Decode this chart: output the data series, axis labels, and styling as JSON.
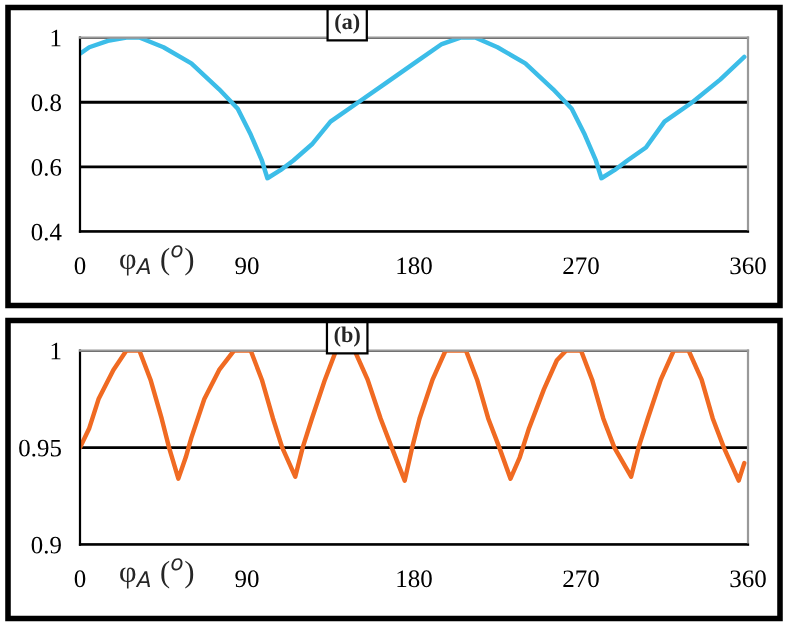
{
  "chart_data": [
    {
      "type": "line",
      "xlabel": "φ$_{A}$ ($^{o}$)",
      "annotations": [
        "(a)"
      ],
      "grid": "y",
      "xlim": [
        0,
        360
      ],
      "xticks": [
        0,
        90,
        180,
        270,
        360
      ],
      "ylim": [
        0.4,
        1
      ],
      "yticks": [
        0.4,
        0.6,
        0.8,
        1
      ],
      "x": [
        0,
        5,
        15,
        25,
        32,
        45,
        60,
        75,
        85,
        92,
        98,
        101,
        108,
        115,
        125,
        135,
        150,
        165,
        180,
        195,
        205,
        213,
        225,
        240,
        255,
        265,
        272,
        278,
        281,
        288,
        295,
        305,
        315,
        330,
        345,
        358
      ],
      "series": [
        {
          "color": "#3cbde8",
          "values": [
            0.95,
            0.97,
            0.99,
            1.0,
            1.0,
            0.97,
            0.92,
            0.84,
            0.78,
            0.7,
            0.62,
            0.565,
            0.59,
            0.62,
            0.67,
            0.74,
            0.8,
            0.86,
            0.92,
            0.98,
            1.0,
            1.0,
            0.97,
            0.92,
            0.84,
            0.78,
            0.7,
            0.62,
            0.565,
            0.59,
            0.62,
            0.66,
            0.74,
            0.8,
            0.87,
            0.94
          ]
        }
      ]
    },
    {
      "type": "line",
      "xlabel": "φ$_{A}$ ($^{o}$)",
      "annotations": [
        "(b)"
      ],
      "grid": "y",
      "xlim": [
        0,
        360
      ],
      "xticks": [
        0,
        90,
        180,
        270,
        360
      ],
      "ylim": [
        0.9,
        1
      ],
      "yticks": [
        0.9,
        0.95,
        1
      ],
      "x": [
        0,
        5,
        10,
        18,
        25,
        32,
        38,
        44,
        48,
        53,
        57,
        60,
        67,
        75,
        83,
        92,
        98,
        104,
        109,
        116,
        120,
        125,
        132,
        138,
        148,
        155,
        162,
        168,
        175,
        179,
        183,
        190,
        197,
        208,
        214,
        220,
        226,
        232,
        237,
        242,
        250,
        257,
        262,
        270,
        276,
        282,
        288,
        297,
        301,
        306,
        313,
        320,
        328,
        335,
        341,
        347,
        355,
        358
      ],
      "series": [
        {
          "color": "#f06a22",
          "values": [
            0.95,
            0.96,
            0.975,
            0.99,
            1.0,
            1.0,
            0.985,
            0.965,
            0.95,
            0.934,
            0.945,
            0.955,
            0.975,
            0.99,
            1.0,
            1.0,
            0.985,
            0.965,
            0.95,
            0.935,
            0.95,
            0.965,
            0.985,
            1.0,
            1.0,
            0.985,
            0.965,
            0.95,
            0.933,
            0.95,
            0.965,
            0.985,
            1.0,
            1.0,
            0.985,
            0.965,
            0.95,
            0.934,
            0.945,
            0.96,
            0.98,
            0.995,
            1.0,
            1.0,
            0.985,
            0.965,
            0.95,
            0.935,
            0.95,
            0.965,
            0.985,
            1.0,
            1.0,
            0.985,
            0.965,
            0.95,
            0.933,
            0.942
          ]
        }
      ]
    }
  ]
}
